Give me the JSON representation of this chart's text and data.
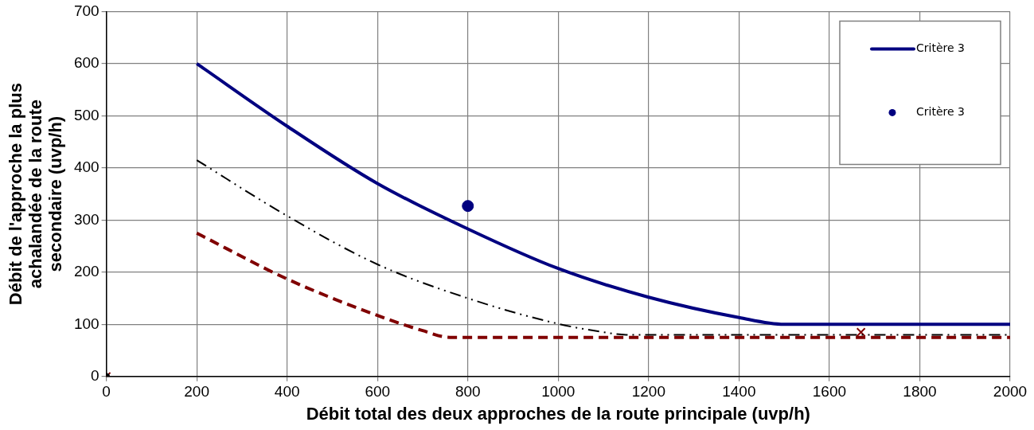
{
  "chart_data": {
    "type": "line",
    "xlabel": "Débit total des deux approches de la route principale (uvp/h)",
    "ylabel": "Débit de l'approche la plus achalandée de la route secondaire (uvp/h)",
    "xlim": [
      0,
      2000
    ],
    "xticks": [
      0,
      200,
      400,
      600,
      800,
      1000,
      1200,
      1400,
      1600,
      1800,
      2000
    ],
    "ylim": [
      0,
      700
    ],
    "yticks": [
      0,
      100,
      200,
      300,
      400,
      500,
      600,
      700
    ],
    "grid": true,
    "legend": "top right",
    "series": [
      {
        "name": "Critère 3",
        "color": "#000080",
        "line_style": "solid",
        "marker": "none",
        "x": [
          200,
          400,
          600,
          800,
          1000,
          1200,
          1400,
          1500,
          2000
        ],
        "values": [
          600,
          480,
          370,
          283,
          207,
          152,
          113,
          100,
          100
        ]
      },
      {
        "color": "#000000",
        "line_style": "dashdot",
        "marker": "none",
        "x": [
          200,
          400,
          600,
          800,
          1000,
          1100,
          1150,
          2000
        ],
        "values": [
          415,
          308,
          215,
          150,
          101,
          85,
          80,
          80
        ]
      },
      {
        "color": "#800000",
        "line_style": "dashed",
        "marker": "none",
        "x": [
          200,
          400,
          600,
          700,
          760,
          2000
        ],
        "values": [
          275,
          187,
          117,
          88,
          75,
          75
        ]
      },
      {
        "name": "Critère 3",
        "type": "scatter",
        "color": "#000080",
        "marker": "circle",
        "x": [
          800
        ],
        "values": [
          327
        ]
      },
      {
        "type": "scatter",
        "color": "#000000",
        "marker": "circle",
        "x": [
          0
        ],
        "values": [
          0
        ]
      },
      {
        "type": "scatter",
        "color": "#800000",
        "marker": "cross",
        "x": [
          0,
          1670
        ],
        "values": [
          0,
          85
        ]
      }
    ]
  }
}
